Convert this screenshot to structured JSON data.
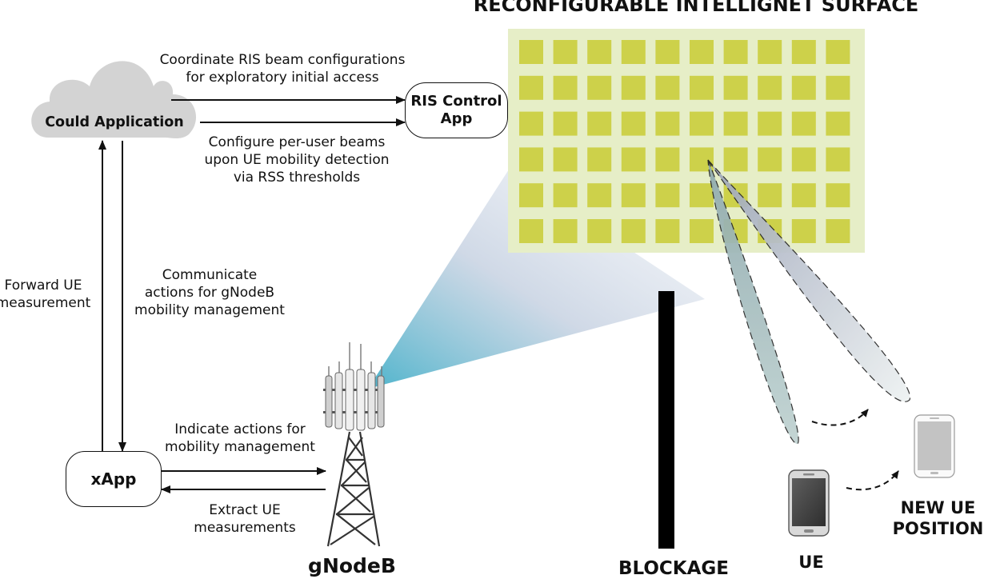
{
  "ris": {
    "title": "RECONFIGURABLE INTELLIGNET SURFACE",
    "colors": {
      "panel": "#e6eec7",
      "tile": "#cdd14a"
    }
  },
  "nodes": {
    "cloud": "Could Application",
    "ris_app": "RIS Control\nApp",
    "xapp": "xApp"
  },
  "edges": {
    "coordinate": "Coordinate RIS beam configurations\nfor exploratory initial access",
    "configure": "Configure per-user beams\nupon UE mobility detection\nvia RSS thresholds",
    "forward": "Forward UE\nmeasurement",
    "communicate": "Communicate\nactions for gNodeB\nmobility management",
    "indicate": "Indicate actions for\nmobility management",
    "extract": "Extract UE\nmeasurements"
  },
  "labels": {
    "gnodeb": "gNodeB",
    "blockage": "BLOCKAGE",
    "ue": "UE",
    "new_ue": "NEW UE\nPOSITION"
  }
}
